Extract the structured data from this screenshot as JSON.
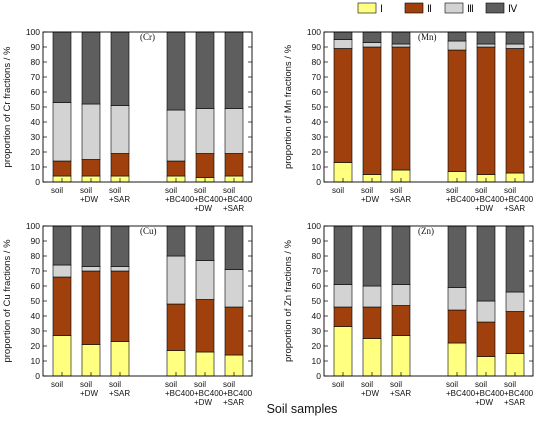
{
  "legend": [
    {
      "label": "Ⅰ",
      "color": "#FFFF80"
    },
    {
      "label": "Ⅱ",
      "color": "#A0410D"
    },
    {
      "label": "Ⅲ",
      "color": "#D3D3D3"
    },
    {
      "label": "Ⅳ",
      "color": "#5E5E5E"
    }
  ],
  "x_title": "Soil samples",
  "chart_data": [
    {
      "type": "bar",
      "stacked": true,
      "tag": "(Cr)",
      "ylabel": "proportion of Cr fractions / %",
      "ylim": [
        0,
        100
      ],
      "yticks": [
        0,
        10,
        20,
        30,
        40,
        50,
        60,
        70,
        80,
        90,
        100
      ],
      "categories": [
        [
          "soil"
        ],
        [
          "soil",
          "+DW"
        ],
        [
          "soil",
          "+SAR"
        ],
        [
          "soil",
          "+BC400"
        ],
        [
          "soil",
          "+BC400",
          "+DW"
        ],
        [
          "soil",
          "+BC400",
          "+SAR"
        ]
      ],
      "series": [
        {
          "name": "Ⅰ",
          "values": [
            4,
            4,
            4,
            4,
            3,
            4
          ]
        },
        {
          "name": "Ⅱ",
          "values": [
            10,
            11,
            15,
            10,
            16,
            15
          ]
        },
        {
          "name": "Ⅲ",
          "values": [
            39,
            37,
            32,
            34,
            30,
            30
          ]
        },
        {
          "name": "Ⅳ",
          "values": [
            47,
            48,
            49,
            52,
            51,
            51
          ]
        }
      ]
    },
    {
      "type": "bar",
      "stacked": true,
      "tag": "(Mn)",
      "ylabel": "proportion of Mn fractions / %",
      "ylim": [
        0,
        100
      ],
      "yticks": [
        0,
        10,
        20,
        30,
        40,
        50,
        60,
        70,
        80,
        90,
        100
      ],
      "categories": [
        [
          "soil"
        ],
        [
          "soil",
          "+DW"
        ],
        [
          "soil",
          "+SAR"
        ],
        [
          "soil",
          "+BC400"
        ],
        [
          "soil",
          "+BC400",
          "+DW"
        ],
        [
          "soil",
          "+BC400",
          "+SAR"
        ]
      ],
      "series": [
        {
          "name": "Ⅰ",
          "values": [
            13,
            5,
            8,
            7,
            5,
            6
          ]
        },
        {
          "name": "Ⅱ",
          "values": [
            76,
            85,
            82,
            81,
            85,
            83
          ]
        },
        {
          "name": "Ⅲ",
          "values": [
            6,
            3,
            2,
            6,
            2,
            3
          ]
        },
        {
          "name": "Ⅳ",
          "values": [
            5,
            7,
            8,
            6,
            8,
            8
          ]
        }
      ]
    },
    {
      "type": "bar",
      "stacked": true,
      "tag": "(Cu)",
      "ylabel": "proportion of Cu fractions / %",
      "ylim": [
        0,
        100
      ],
      "yticks": [
        0,
        10,
        20,
        30,
        40,
        50,
        60,
        70,
        80,
        90,
        100
      ],
      "categories": [
        [
          "soil"
        ],
        [
          "soil",
          "+DW"
        ],
        [
          "soil",
          "+SAR"
        ],
        [
          "soil",
          "+BC400"
        ],
        [
          "soil",
          "+BC400",
          "+DW"
        ],
        [
          "soil",
          "+BC400",
          "+SAR"
        ]
      ],
      "series": [
        {
          "name": "Ⅰ",
          "values": [
            27,
            21,
            23,
            17,
            16,
            14
          ]
        },
        {
          "name": "Ⅱ",
          "values": [
            39,
            49,
            47,
            31,
            35,
            32
          ]
        },
        {
          "name": "Ⅲ",
          "values": [
            8,
            3,
            3,
            32,
            26,
            25
          ]
        },
        {
          "name": "Ⅳ",
          "values": [
            26,
            27,
            27,
            20,
            23,
            29
          ]
        }
      ]
    },
    {
      "type": "bar",
      "stacked": true,
      "tag": "(Zn)",
      "ylabel": "proportion of Zn fractions / %",
      "ylim": [
        0,
        100
      ],
      "yticks": [
        0,
        10,
        20,
        30,
        40,
        50,
        60,
        70,
        80,
        90,
        100
      ],
      "categories": [
        [
          "soil"
        ],
        [
          "soil",
          "+DW"
        ],
        [
          "soil",
          "+SAR"
        ],
        [
          "soil",
          "+BC400"
        ],
        [
          "soil",
          "+BC400",
          "+DW"
        ],
        [
          "soil",
          "+BC400",
          "+SAR"
        ]
      ],
      "series": [
        {
          "name": "Ⅰ",
          "values": [
            33,
            25,
            27,
            22,
            13,
            15
          ]
        },
        {
          "name": "Ⅱ",
          "values": [
            13,
            21,
            20,
            22,
            23,
            28
          ]
        },
        {
          "name": "Ⅲ",
          "values": [
            15,
            14,
            14,
            15,
            14,
            13
          ]
        },
        {
          "name": "Ⅳ",
          "values": [
            39,
            40,
            39,
            41,
            50,
            44
          ]
        }
      ]
    }
  ]
}
